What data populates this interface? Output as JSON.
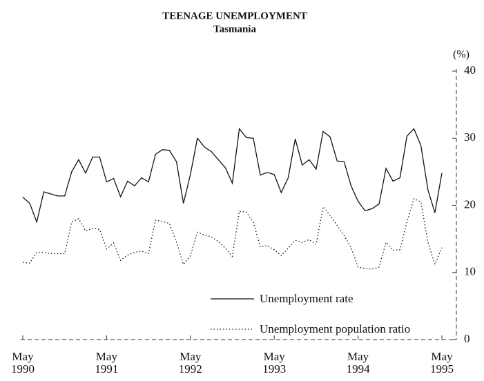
{
  "chart_data": {
    "type": "line",
    "title": "TEENAGE UNEMPLOYMENT",
    "subtitle": "Tasmania",
    "y_label": "(%)",
    "categories": [
      "May 1990",
      null,
      null,
      null,
      null,
      null,
      null,
      null,
      null,
      null,
      null,
      null,
      "May 1991",
      null,
      null,
      null,
      null,
      null,
      null,
      null,
      null,
      null,
      null,
      null,
      "May 1992",
      null,
      null,
      null,
      null,
      null,
      null,
      null,
      null,
      null,
      null,
      null,
      "May 1993",
      null,
      null,
      null,
      null,
      null,
      null,
      null,
      null,
      null,
      null,
      null,
      "May 1994",
      null,
      null,
      null,
      null,
      null,
      null,
      null,
      null,
      null,
      null,
      null,
      "May 1995"
    ],
    "series": [
      {
        "name": "Unemployment rate",
        "color": "#111111",
        "style": "solid",
        "values": [
          21.2,
          20.3,
          17.5,
          22,
          21.7,
          21.4,
          21.4,
          25,
          26.8,
          24.8,
          27.2,
          27.2,
          23.5,
          24,
          21.3,
          23.6,
          22.9,
          24.1,
          23.5,
          27.6,
          28.3,
          28.2,
          26.5,
          20.3,
          24.6,
          30,
          28.7,
          28,
          26.8,
          25.6,
          23.3,
          31.4,
          30.1,
          30,
          24.5,
          24.9,
          24.6,
          21.9,
          24.1,
          29.9,
          26,
          26.8,
          25.4,
          31,
          30.2,
          26.6,
          26.5,
          22.9,
          20.6,
          19.2,
          19.5,
          20.2,
          25.5,
          23.6,
          24.1,
          30.3,
          31.4,
          28.9,
          22.3,
          18.9,
          24.8
        ]
      },
      {
        "name": "Unemployment population ratio",
        "color": "#111111",
        "style": "dotted",
        "values": [
          11.5,
          11.4,
          13,
          13,
          12.8,
          12.8,
          12.8,
          17.5,
          18,
          16.2,
          16.6,
          16.4,
          13.5,
          14.4,
          11.8,
          12.6,
          13,
          13.2,
          12.8,
          17.8,
          17.6,
          17.3,
          14.5,
          11.2,
          12.5,
          16,
          15.6,
          15.3,
          14.6,
          13.6,
          12.4,
          19.1,
          19,
          17.5,
          13.8,
          14,
          13.4,
          12.5,
          13.6,
          14.8,
          14.5,
          14.9,
          14.2,
          19.8,
          18.5,
          17,
          15.5,
          13.7,
          10.8,
          10.6,
          10.5,
          10.8,
          14.5,
          13.3,
          13.4,
          17.5,
          21,
          20.5,
          14.5,
          11.2,
          13.7
        ]
      }
    ],
    "ylim": [
      0,
      40
    ],
    "yticks": [
      0,
      10,
      20,
      30,
      40
    ],
    "grid": false
  }
}
